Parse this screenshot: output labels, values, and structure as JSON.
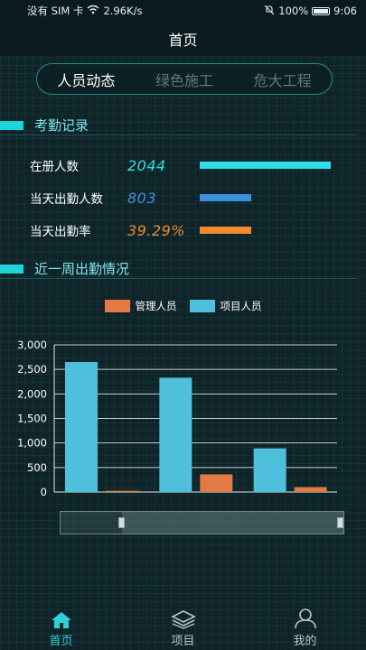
{
  "status_bar": {
    "carrier": "没有 SIM 卡",
    "speed": "2.96K/s",
    "battery": "100%",
    "time": "9:06"
  },
  "header": {
    "title": "首页"
  },
  "tabs": [
    {
      "label": "人员动态",
      "active": true
    },
    {
      "label": "绿色施工",
      "active": false
    },
    {
      "label": "危大工程",
      "active": false
    }
  ],
  "attendance": {
    "title": "考勤记录",
    "stats": [
      {
        "label": "在册人数",
        "value": "2044",
        "color": "#2ee0e6",
        "fraction": 1.0
      },
      {
        "label": "当天出勤人数",
        "value": "803",
        "color": "#3d8fdc",
        "fraction": 0.39
      },
      {
        "label": "当天出勤率",
        "value": "39.29%",
        "color": "#f08a2c",
        "fraction": 0.39
      }
    ]
  },
  "weekly": {
    "title": "近一周出勤情况"
  },
  "chart_data": {
    "type": "bar",
    "categories": [
      "",
      "",
      ""
    ],
    "series": [
      {
        "name": "项目人员",
        "color": "#4fc0dc",
        "values": [
          2650,
          2330,
          890
        ]
      },
      {
        "name": "管理人员",
        "color": "#e27a45",
        "values": [
          25,
          360,
          100
        ]
      }
    ],
    "yticks": [
      "3,000",
      "2,500",
      "2,000",
      "1,500",
      "1,000",
      "500",
      "0"
    ],
    "ylim": [
      0,
      3000
    ]
  },
  "legend": [
    {
      "name": "管理人员",
      "color": "#e27a45"
    },
    {
      "name": "项目人员",
      "color": "#4fc0dc"
    }
  ],
  "bottom_nav": [
    {
      "label": "首页",
      "icon": "home-icon",
      "active": true
    },
    {
      "label": "项目",
      "icon": "layers-icon",
      "active": false
    },
    {
      "label": "我的",
      "icon": "user-icon",
      "active": false
    }
  ]
}
